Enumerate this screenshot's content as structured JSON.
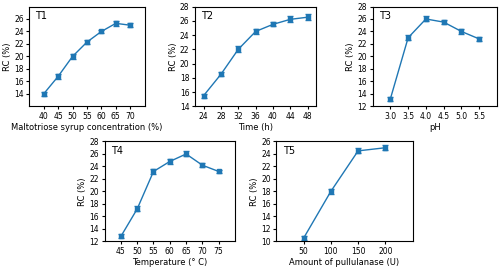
{
  "chart_data": [
    {
      "type": "line",
      "title": "T1",
      "x": [
        40,
        45,
        50,
        55,
        60,
        65,
        70
      ],
      "values": [
        14.0,
        16.8,
        20.0,
        22.3,
        24.0,
        25.3,
        25.0
      ],
      "yerr": [
        0.3,
        0.4,
        0.4,
        0.3,
        0.3,
        0.4,
        0.3
      ],
      "xlabel": "Maltotriose syrup concentration (%)",
      "ylabel": "RC (%)",
      "xlim": [
        35,
        75
      ],
      "ylim": [
        12,
        28
      ],
      "xticks": [
        40,
        45,
        50,
        55,
        60,
        65,
        70
      ],
      "yticks": [
        14,
        16,
        18,
        20,
        22,
        24,
        26
      ],
      "marker": "square",
      "line_style": "solid"
    },
    {
      "type": "line",
      "title": "T2",
      "x": [
        24,
        28,
        32,
        36,
        40,
        44,
        48
      ],
      "values": [
        15.5,
        18.5,
        22.0,
        24.5,
        25.5,
        26.2,
        26.5
      ],
      "yerr": [
        0.3,
        0.3,
        0.4,
        0.4,
        0.3,
        0.4,
        0.4
      ],
      "xlabel": "Time (h)",
      "ylabel": "RC (%)",
      "xlim": [
        22,
        50
      ],
      "ylim": [
        14,
        28
      ],
      "xticks": [
        24,
        28,
        32,
        36,
        40,
        44,
        48
      ],
      "yticks": [
        14,
        16,
        18,
        20,
        22,
        24,
        26,
        28
      ],
      "marker": "square",
      "line_style": "solid"
    },
    {
      "type": "line",
      "title": "T3",
      "x": [
        3.0,
        3.5,
        4.0,
        4.5,
        5.0,
        5.5
      ],
      "values": [
        13.2,
        23.0,
        26.0,
        25.5,
        24.0,
        22.8
      ],
      "yerr": [
        0.3,
        0.4,
        0.4,
        0.3,
        0.4,
        0.3
      ],
      "xlabel": "pH",
      "ylabel": "RC (%)",
      "xlim": [
        2.5,
        6.0
      ],
      "ylim": [
        12,
        28
      ],
      "xticks": [
        3.0,
        3.5,
        4.0,
        4.5,
        5.0,
        5.5
      ],
      "yticks": [
        12,
        14,
        16,
        18,
        20,
        22,
        24,
        26,
        28
      ],
      "marker": "square",
      "line_style": "solid"
    },
    {
      "type": "line",
      "title": "T4",
      "x": [
        45,
        50,
        55,
        60,
        65,
        70,
        75
      ],
      "values": [
        12.8,
        17.2,
        23.2,
        24.8,
        26.0,
        24.2,
        23.2
      ],
      "yerr": [
        0.3,
        0.4,
        0.4,
        0.4,
        0.4,
        0.3,
        0.3
      ],
      "xlabel": "Temperature (° C)",
      "ylabel": "RC (%)",
      "xlim": [
        40,
        80
      ],
      "ylim": [
        12,
        28
      ],
      "xticks": [
        45,
        50,
        55,
        60,
        65,
        70,
        75
      ],
      "yticks": [
        12,
        14,
        16,
        18,
        20,
        22,
        24,
        26,
        28
      ],
      "marker": "square",
      "line_style": "solid"
    },
    {
      "type": "line",
      "title": "T5",
      "x": [
        50,
        100,
        150,
        200
      ],
      "values": [
        10.5,
        18.0,
        24.5,
        25.0
      ],
      "yerr": [
        0.3,
        0.4,
        0.4,
        0.4
      ],
      "xlabel": "Amount of pullulanase (U)",
      "ylabel": "RC (%)",
      "xlim": [
        0,
        250
      ],
      "ylim": [
        10,
        26
      ],
      "xticks": [
        50,
        100,
        150,
        200
      ],
      "yticks": [
        10,
        12,
        14,
        16,
        18,
        20,
        22,
        24,
        26
      ],
      "marker": "square",
      "line_style": "solid"
    }
  ]
}
